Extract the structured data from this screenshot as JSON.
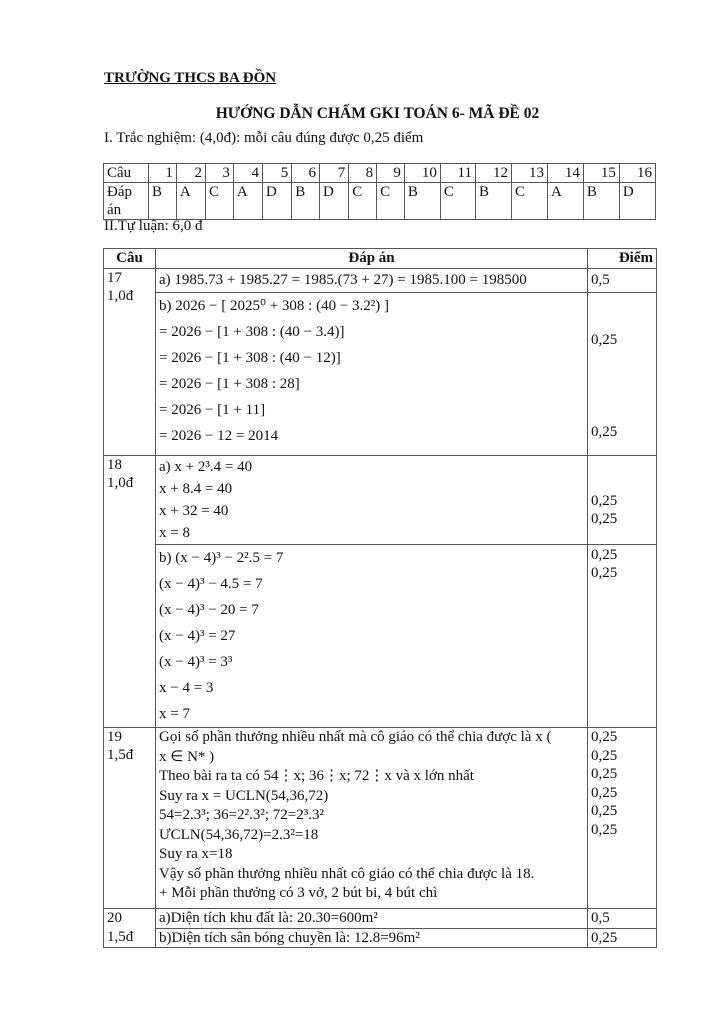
{
  "header": {
    "school": "TRƯỜNG THCS BA ĐỒN",
    "title": "HƯỚNG DẪN CHẤM GKI TOÁN 6- MÃ ĐỀ 02"
  },
  "part1": {
    "heading": "I. Trắc nghiệm: (4,0đ): mỗi câu đúng được 0,25 điểm",
    "row_label_q": "Câu",
    "row_label_a": "Đáp án",
    "questions": [
      "1",
      "2",
      "3",
      "4",
      "5",
      "6",
      "7",
      "8",
      "9",
      "10",
      "11",
      "12",
      "13",
      "14",
      "15",
      "16"
    ],
    "answers": [
      "B",
      "A",
      "C",
      "A",
      "D",
      "B",
      "D",
      "C",
      "C",
      "B",
      "C",
      "B",
      "C",
      "A",
      "B",
      "D"
    ]
  },
  "part2": {
    "heading": "II.Tự luận: 6,0 đ",
    "columns": [
      "Câu",
      "Đáp án",
      "Điểm"
    ],
    "q17": {
      "label": "17",
      "points": "1,0đ",
      "a": "a) 1985.73 + 1985.27 = 1985.(73 + 27) = 1985.100 = 198500",
      "a_score": "0,5",
      "b": [
        "b) 2026 − [ 2025⁰ + 308 : (40 − 3.2²) ]",
        "= 2026 − [1 + 308 : (40 − 3.4)]",
        "= 2026 − [1 + 308 : (40 − 12)]",
        "= 2026 − [1 + 308 : 28]",
        "= 2026 − [1 + 11]",
        "= 2026 − 12 = 2014"
      ],
      "b_scores": [
        "0,25",
        "0,25"
      ]
    },
    "q18": {
      "label": "18",
      "points": "1,0đ",
      "a": [
        "a) x + 2³.4 = 40",
        "x + 8.4 = 40",
        "x + 32 = 40",
        "x = 8"
      ],
      "a_scores": [
        "0,25",
        "0,25"
      ],
      "b": [
        "b) (x − 4)³ − 2².5 = 7",
        "(x − 4)³ − 4.5 = 7",
        "(x − 4)³ − 20 = 7",
        "(x − 4)³ = 27",
        "(x − 4)³ = 3³",
        "x − 4 = 3",
        "x = 7"
      ],
      "b_scores": [
        "0,25",
        "0,25"
      ]
    },
    "q19": {
      "label": "19",
      "points": "1,5đ",
      "lines": [
        "Gọi số phần thưởng nhiều nhất mà cô giáo có thể chia được là x (",
        "x ∈ N* )",
        "Theo bài ra ta có 54⋮x; 36⋮x; 72⋮x và x lớn nhất",
        "Suy ra x = UCLN(54,36,72)",
        "54=2.3³; 36=2².3²; 72=2³.3²",
        "ƯCLN(54,36,72)=2.3²=18",
        "Suy ra x=18",
        "Vậy số phần thưởng nhiều nhất cô giáo có thể chia được là 18.",
        "+ Mỗi phần thưởng có 3 vở, 2 bút bi, 4 bút chì"
      ],
      "scores": [
        "0,25",
        "0,25",
        "0,25",
        "0,25",
        "0,25",
        "0,25"
      ]
    },
    "q20": {
      "label": "20",
      "points": "1,5đ",
      "a": "a)Diện tích khu đất là: 20.30=600m²",
      "a_score": "0,5",
      "b": "b)Diện tích sân bóng chuyền là: 12.8=96m²",
      "b_score": "0,25"
    }
  }
}
